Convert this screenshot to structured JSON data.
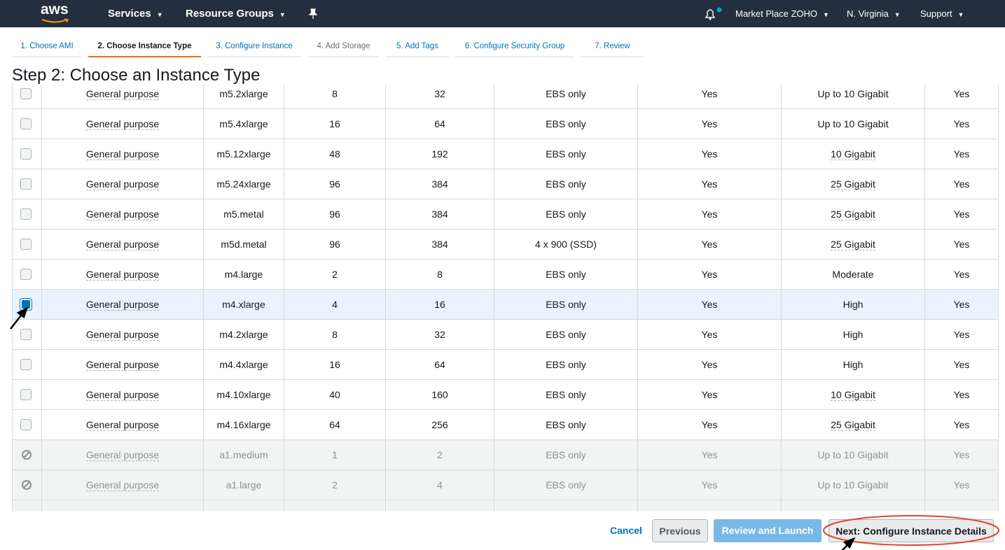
{
  "nav": {
    "logo": "aws",
    "services": "Services",
    "resource_groups": "Resource Groups",
    "account": "Market Place ZOHO",
    "region": "N. Virginia",
    "support": "Support"
  },
  "tabs": [
    "1. Choose AMI",
    "2. Choose Instance Type",
    "3. Configure Instance",
    "4. Add Storage",
    "5. Add Tags",
    "6. Configure Security Group",
    "7. Review"
  ],
  "heading": "Step 2: Choose an Instance Type",
  "table": {
    "rows": [
      {
        "cells": [
          "General purpose",
          "m5.2xlarge",
          8,
          32,
          "EBS only",
          "Yes",
          "Up to 10 Gigabit",
          "Yes"
        ]
      },
      {
        "cells": [
          "General purpose",
          "m5.4xlarge",
          16,
          64,
          "EBS only",
          "Yes",
          "Up to 10 Gigabit",
          "Yes"
        ]
      },
      {
        "cells": [
          "General purpose",
          "m5.12xlarge",
          48,
          192,
          "EBS only",
          "Yes",
          "10 Gigabit",
          "Yes"
        ]
      },
      {
        "cells": [
          "General purpose",
          "m5.24xlarge",
          96,
          384,
          "EBS only",
          "Yes",
          "25 Gigabit",
          "Yes"
        ]
      },
      {
        "cells": [
          "General purpose",
          "m5.metal",
          96,
          384,
          "EBS only",
          "Yes",
          "25 Gigabit",
          "Yes"
        ]
      },
      {
        "cells": [
          "General purpose",
          "m5d.metal",
          96,
          384,
          "4 x 900 (SSD)",
          "Yes",
          "25 Gigabit",
          "Yes"
        ]
      },
      {
        "cells": [
          "General purpose",
          "m4.large",
          2,
          8,
          "EBS only",
          "Yes",
          "Moderate",
          "Yes"
        ]
      },
      {
        "cells": [
          "General purpose",
          "m4.xlarge",
          4,
          16,
          "EBS only",
          "Yes",
          "High",
          "Yes"
        ],
        "checked": true
      },
      {
        "cells": [
          "General purpose",
          "m4.2xlarge",
          8,
          32,
          "EBS only",
          "Yes",
          "High",
          "Yes"
        ]
      },
      {
        "cells": [
          "General purpose",
          "m4.4xlarge",
          16,
          64,
          "EBS only",
          "Yes",
          "High",
          "Yes"
        ]
      },
      {
        "cells": [
          "General purpose",
          "m4.10xlarge",
          40,
          160,
          "EBS only",
          "Yes",
          "10 Gigabit",
          "Yes"
        ]
      },
      {
        "cells": [
          "General purpose",
          "m4.16xlarge",
          64,
          256,
          "EBS only",
          "Yes",
          "25 Gigabit",
          "Yes"
        ]
      },
      {
        "cells": [
          "General purpose",
          "a1.medium",
          1,
          2,
          "EBS only",
          "Yes",
          "Up to 10 Gigabit",
          "Yes"
        ],
        "disabled": true
      },
      {
        "cells": [
          "General purpose",
          "a1.large",
          2,
          4,
          "EBS only",
          "Yes",
          "Up to 10 Gigabit",
          "Yes"
        ],
        "disabled": true
      }
    ]
  },
  "buttons": {
    "cancel": "Cancel",
    "previous": "Previous",
    "review": "Review and Launch",
    "next": "Next: Configure Instance Details"
  }
}
